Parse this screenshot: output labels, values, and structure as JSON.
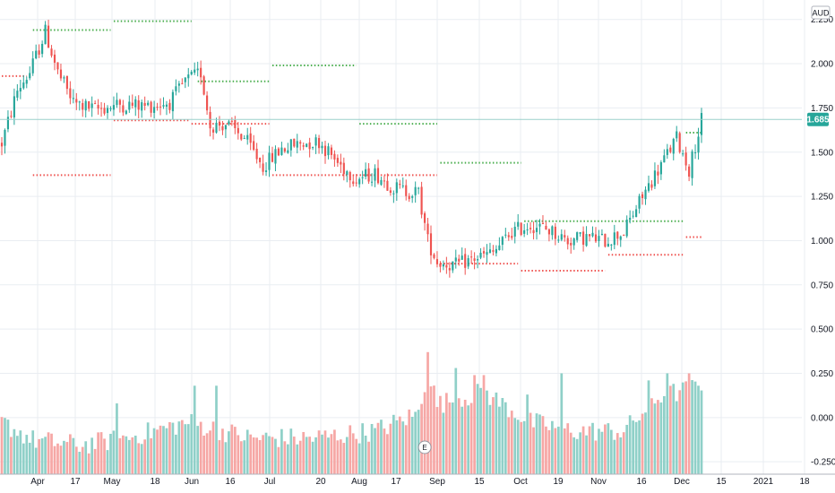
{
  "currency": "AUD",
  "current_price_label": "1.685",
  "earnings_marker": "E",
  "colors": {
    "up": "#26a69a",
    "down": "#ef5350",
    "up_volume": "#8fd0c8",
    "down_volume": "#f6a7a5",
    "pivot_high": "#4caf50",
    "pivot_low": "#ef5350",
    "price_line": "#9ad0cb",
    "grid": "#e9edf2"
  },
  "chart_data": {
    "type": "candlestick",
    "title": "",
    "x_tick_labels": [
      "Apr",
      "17",
      "May",
      "18",
      "Jun",
      "16",
      "Jul",
      "20",
      "Aug",
      "17",
      "Sep",
      "15",
      "Oct",
      "19",
      "Nov",
      "16",
      "Dec",
      "15",
      "2021",
      "18"
    ],
    "price_axis_ticks": [
      "2.250",
      "2.000",
      "1.750",
      "1.500",
      "1.250",
      "1.000",
      "0.750",
      "0.500",
      "0.250",
      "0.000",
      "-0.250"
    ],
    "price_ylim": [
      -0.32,
      2.36
    ],
    "current_price": 1.685,
    "trend_anchors": [
      [
        0,
        1.55
      ],
      [
        5,
        1.85
      ],
      [
        9,
        1.95
      ],
      [
        14,
        2.18
      ],
      [
        18,
        1.95
      ],
      [
        23,
        1.78
      ],
      [
        30,
        1.74
      ],
      [
        38,
        1.77
      ],
      [
        46,
        1.76
      ],
      [
        54,
        1.78
      ],
      [
        59,
        1.9
      ],
      [
        64,
        1.95
      ],
      [
        67,
        1.65
      ],
      [
        72,
        1.66
      ],
      [
        78,
        1.58
      ],
      [
        84,
        1.42
      ],
      [
        90,
        1.52
      ],
      [
        96,
        1.55
      ],
      [
        102,
        1.56
      ],
      [
        108,
        1.44
      ],
      [
        114,
        1.35
      ],
      [
        120,
        1.38
      ],
      [
        126,
        1.3
      ],
      [
        130,
        1.28
      ],
      [
        134,
        1.27
      ],
      [
        137,
        1.0
      ],
      [
        140,
        0.88
      ],
      [
        146,
        0.86
      ],
      [
        152,
        0.9
      ],
      [
        158,
        0.93
      ],
      [
        164,
        1.05
      ],
      [
        170,
        1.09
      ],
      [
        176,
        1.06
      ],
      [
        182,
        1.0
      ],
      [
        188,
        1.02
      ],
      [
        194,
        1.0
      ],
      [
        200,
        1.05
      ],
      [
        206,
        1.25
      ],
      [
        212,
        1.43
      ],
      [
        217,
        1.58
      ],
      [
        221,
        1.4
      ],
      [
        225,
        1.68
      ]
    ],
    "volume_anchors": [
      [
        0,
        -0.05
      ],
      [
        10,
        -0.15
      ],
      [
        25,
        -0.18
      ],
      [
        40,
        -0.14
      ],
      [
        60,
        -0.05
      ],
      [
        80,
        -0.14
      ],
      [
        100,
        -0.14
      ],
      [
        120,
        -0.1
      ],
      [
        134,
        0.0
      ],
      [
        137,
        0.25
      ],
      [
        140,
        0.05
      ],
      [
        155,
        0.12
      ],
      [
        170,
        -0.05
      ],
      [
        185,
        -0.1
      ],
      [
        200,
        -0.1
      ],
      [
        212,
        0.1
      ],
      [
        225,
        0.15
      ]
    ],
    "volume_spikes": [
      [
        37,
        0.08
      ],
      [
        62,
        0.18
      ],
      [
        69,
        0.18
      ],
      [
        137,
        0.37
      ],
      [
        146,
        0.28
      ],
      [
        152,
        0.24
      ],
      [
        155,
        0.24
      ],
      [
        169,
        0.13
      ],
      [
        180,
        0.25
      ],
      [
        208,
        0.21
      ],
      [
        214,
        0.25
      ],
      [
        221,
        0.25
      ],
      [
        224,
        0.18
      ]
    ],
    "pivot_high_levels": [
      {
        "x0": 10,
        "x1": 35,
        "y": 2.19
      },
      {
        "x0": 36,
        "x1": 61,
        "y": 2.24
      },
      {
        "x0": 63,
        "x1": 86,
        "y": 1.9
      },
      {
        "x0": 87,
        "x1": 114,
        "y": 1.99
      },
      {
        "x0": 115,
        "x1": 140,
        "y": 1.66
      },
      {
        "x0": 141,
        "x1": 167,
        "y": 1.44
      },
      {
        "x0": 168,
        "x1": 219,
        "y": 1.11
      },
      {
        "x0": 220,
        "x1": 225,
        "y": 1.61
      }
    ],
    "pivot_low_levels": [
      {
        "x0": 0,
        "x1": 8,
        "y": 1.93
      },
      {
        "x0": 10,
        "x1": 35,
        "y": 1.37
      },
      {
        "x0": 36,
        "x1": 60,
        "y": 1.68
      },
      {
        "x0": 61,
        "x1": 86,
        "y": 1.66
      },
      {
        "x0": 87,
        "x1": 140,
        "y": 1.37
      },
      {
        "x0": 141,
        "x1": 166,
        "y": 0.87
      },
      {
        "x0": 167,
        "x1": 194,
        "y": 0.83
      },
      {
        "x0": 195,
        "x1": 219,
        "y": 0.92
      },
      {
        "x0": 220,
        "x1": 225,
        "y": 1.02
      }
    ],
    "bar_count": 226,
    "earnings_bar": 136,
    "grid": true
  }
}
